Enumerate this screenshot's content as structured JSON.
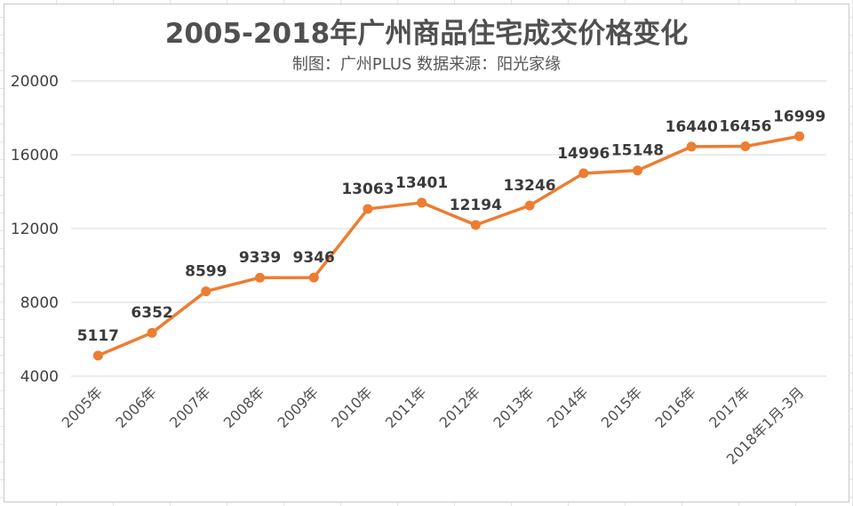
{
  "chart_data": {
    "type": "line",
    "title": "2005-2018年广州商品住宅成交价格变化",
    "subtitle": "制图：广州PLUS 数据来源：阳光家缘",
    "categories": [
      "2005年",
      "2006年",
      "2007年",
      "2008年",
      "2009年",
      "2010年",
      "2011年",
      "2012年",
      "2013年",
      "2014年",
      "2015年",
      "2016年",
      "2017年",
      "2018年1月-3月"
    ],
    "series": [
      {
        "values": [
          5117,
          6352,
          8599,
          9339,
          9346,
          13063,
          13401,
          12194,
          13246,
          14996,
          15148,
          16440,
          16456,
          16999
        ],
        "color": "#ED7D31"
      }
    ],
    "ylim": [
      4000,
      20000
    ],
    "yticks": [
      4000,
      8000,
      12000,
      16000,
      20000
    ],
    "grid": true,
    "data_labels": true,
    "legend": "none"
  }
}
